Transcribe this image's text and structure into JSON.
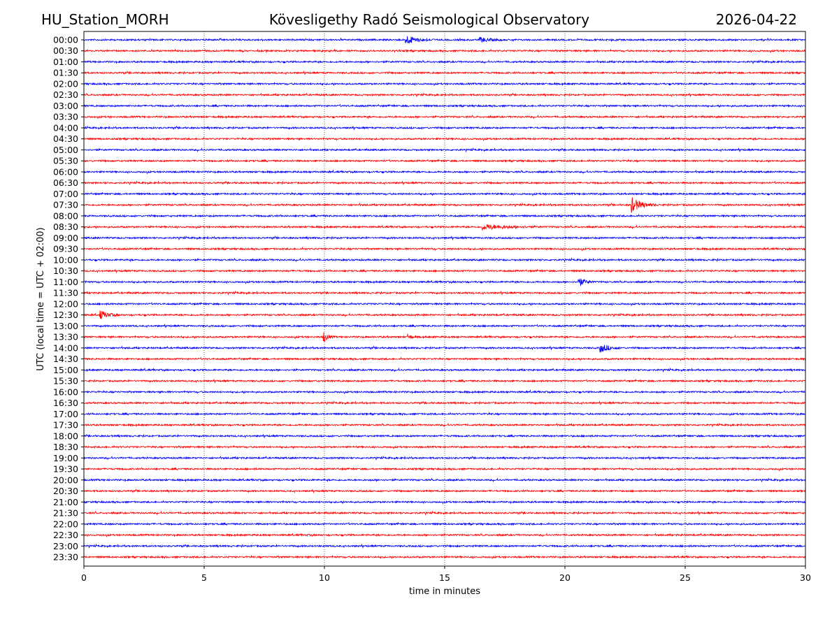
{
  "header": {
    "station": "HU_Station_MORH",
    "observatory": "Kövesligethy Radó Seismological Observatory",
    "date": "2026-04-22"
  },
  "chart_data": {
    "type": "line",
    "title": "Kövesligethy Radó Seismological Observatory",
    "xlabel": "time in minutes",
    "ylabel": "UTC (local time = UTC + 02:00)",
    "xlim": [
      0,
      30
    ],
    "xticks": [
      "0",
      "5",
      "10",
      "15",
      "20",
      "25",
      "30"
    ],
    "grid": "vertical dotted at x ticks",
    "row_minutes": 30,
    "colors": [
      "#0000ff",
      "#ff0000"
    ],
    "rows": [
      "00:00",
      "00:30",
      "01:00",
      "01:30",
      "02:00",
      "02:30",
      "03:00",
      "03:30",
      "04:00",
      "04:30",
      "05:00",
      "05:30",
      "06:00",
      "06:30",
      "07:00",
      "07:30",
      "08:00",
      "08:30",
      "09:00",
      "09:30",
      "10:00",
      "10:30",
      "11:00",
      "11:30",
      "12:00",
      "12:30",
      "13:00",
      "13:30",
      "14:00",
      "14:30",
      "15:00",
      "15:30",
      "16:00",
      "16:30",
      "17:00",
      "17:30",
      "18:00",
      "18:30",
      "19:00",
      "19:30",
      "20:00",
      "20:30",
      "21:00",
      "21:30",
      "22:00",
      "22:30",
      "23:00",
      "23:30"
    ],
    "events": [
      {
        "row": "00:00",
        "minute": 13.4,
        "amplitude": 3.0,
        "duration": 1.2
      },
      {
        "row": "00:00",
        "minute": 16.5,
        "amplitude": 1.6,
        "duration": 1.0
      },
      {
        "row": "07:30",
        "minute": 22.8,
        "amplitude": 5.0,
        "duration": 1.0
      },
      {
        "row": "08:30",
        "minute": 16.6,
        "amplitude": 1.8,
        "duration": 2.5
      },
      {
        "row": "11:00",
        "minute": 20.6,
        "amplitude": 3.0,
        "duration": 0.6
      },
      {
        "row": "12:30",
        "minute": 0.7,
        "amplitude": 3.0,
        "duration": 0.8
      },
      {
        "row": "13:30",
        "minute": 10.0,
        "amplitude": 3.2,
        "duration": 0.4
      },
      {
        "row": "13:30",
        "minute": 13.5,
        "amplitude": 2.0,
        "duration": 0.3
      },
      {
        "row": "14:00",
        "minute": 21.5,
        "amplitude": 3.0,
        "duration": 0.8
      }
    ]
  }
}
